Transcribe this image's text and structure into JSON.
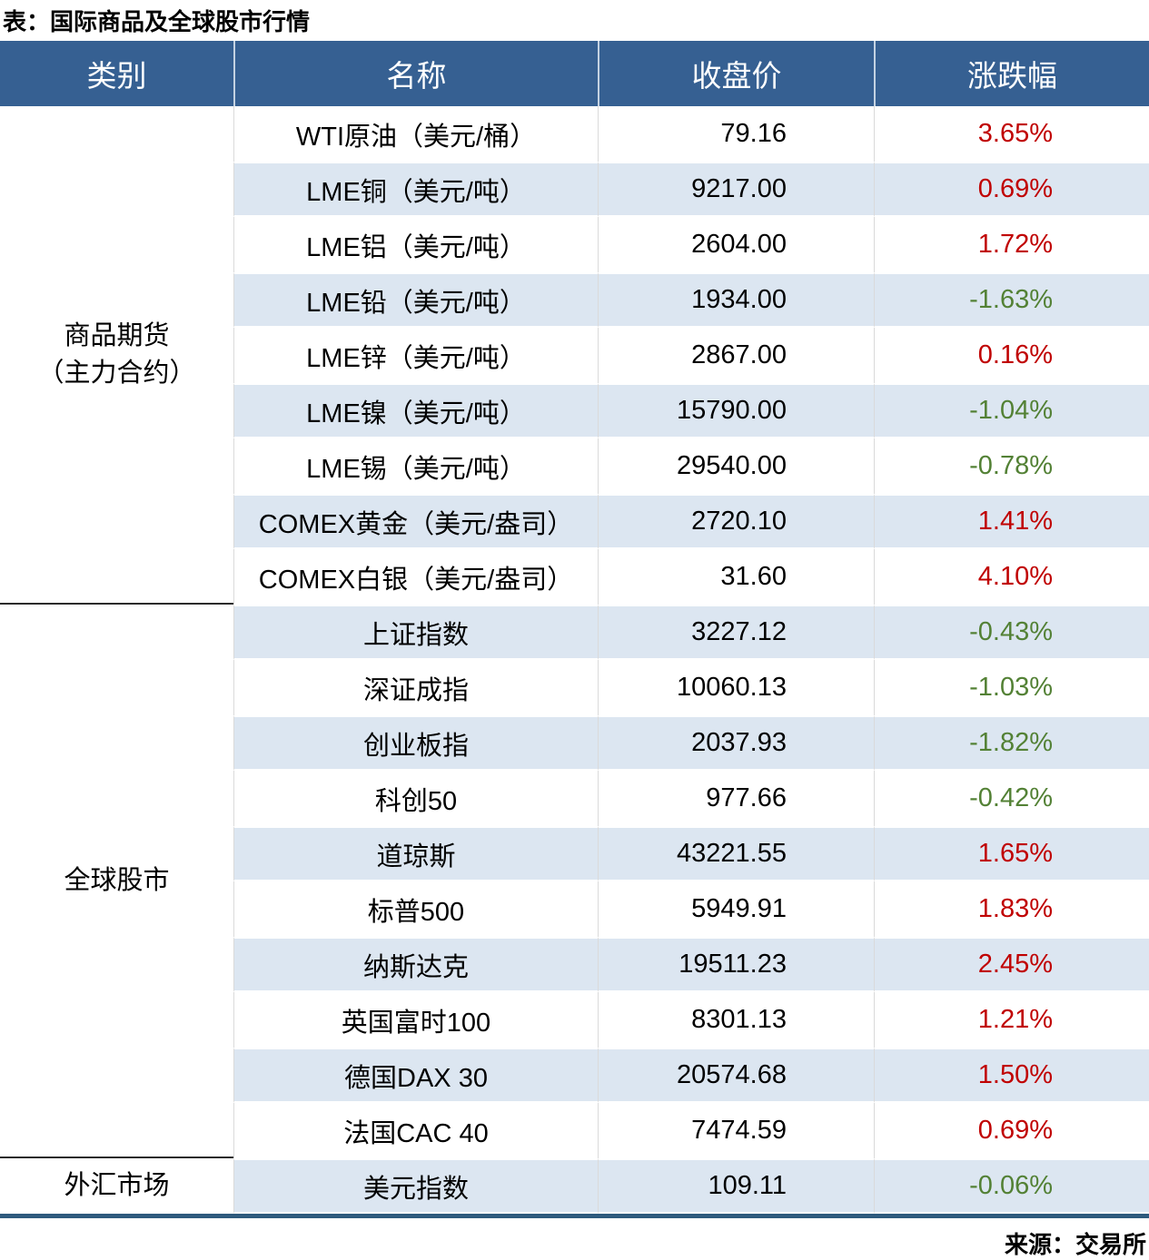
{
  "title": "表：国际商品及全球股市行情",
  "source_note": "来源：交易所",
  "colors": {
    "header_bg": "#366092",
    "header_text": "#ffffff",
    "stripe": "#dce6f1",
    "up": "#c00000",
    "down": "#538135",
    "table_bottom": "#2e5a7d",
    "section_divider": "#2b2b2b",
    "column_divider": "#dadada"
  },
  "chart_data": {
    "type": "table",
    "title": "表：国际商品及全球股市行情",
    "columns": [
      "类别",
      "名称",
      "收盘价",
      "涨跌幅"
    ],
    "sections": [
      {
        "category": "商品期货\n（主力合约）",
        "rows": [
          {
            "name": "WTI原油（美元/桶）",
            "close": "79.16",
            "change": "3.65%"
          },
          {
            "name": "LME铜（美元/吨）",
            "close": "9217.00",
            "change": "0.69%"
          },
          {
            "name": "LME铝（美元/吨）",
            "close": "2604.00",
            "change": "1.72%"
          },
          {
            "name": "LME铅（美元/吨）",
            "close": "1934.00",
            "change": "-1.63%"
          },
          {
            "name": "LME锌（美元/吨）",
            "close": "2867.00",
            "change": "0.16%"
          },
          {
            "name": "LME镍（美元/吨）",
            "close": "15790.00",
            "change": "-1.04%"
          },
          {
            "name": "LME锡（美元/吨）",
            "close": "29540.00",
            "change": "-0.78%"
          },
          {
            "name": "COMEX黄金（美元/盎司）",
            "close": "2720.10",
            "change": "1.41%"
          },
          {
            "name": "COMEX白银（美元/盎司）",
            "close": "31.60",
            "change": "4.10%"
          }
        ]
      },
      {
        "category": "全球股市",
        "rows": [
          {
            "name": "上证指数",
            "close": "3227.12",
            "change": "-0.43%"
          },
          {
            "name": "深证成指",
            "close": "10060.13",
            "change": "-1.03%"
          },
          {
            "name": "创业板指",
            "close": "2037.93",
            "change": "-1.82%"
          },
          {
            "name": "科创50",
            "close": "977.66",
            "change": "-0.42%"
          },
          {
            "name": "道琼斯",
            "close": "43221.55",
            "change": "1.65%"
          },
          {
            "name": "标普500",
            "close": "5949.91",
            "change": "1.83%"
          },
          {
            "name": "纳斯达克",
            "close": "19511.23",
            "change": "2.45%"
          },
          {
            "name": "英国富时100",
            "close": "8301.13",
            "change": "1.21%"
          },
          {
            "name": "德国DAX 30",
            "close": "20574.68",
            "change": "1.50%"
          },
          {
            "name": "法国CAC 40",
            "close": "7474.59",
            "change": "0.69%"
          }
        ]
      },
      {
        "category": "外汇市场",
        "rows": [
          {
            "name": "美元指数",
            "close": "109.11",
            "change": "-0.06%"
          }
        ]
      }
    ],
    "source": "来源：交易所"
  }
}
